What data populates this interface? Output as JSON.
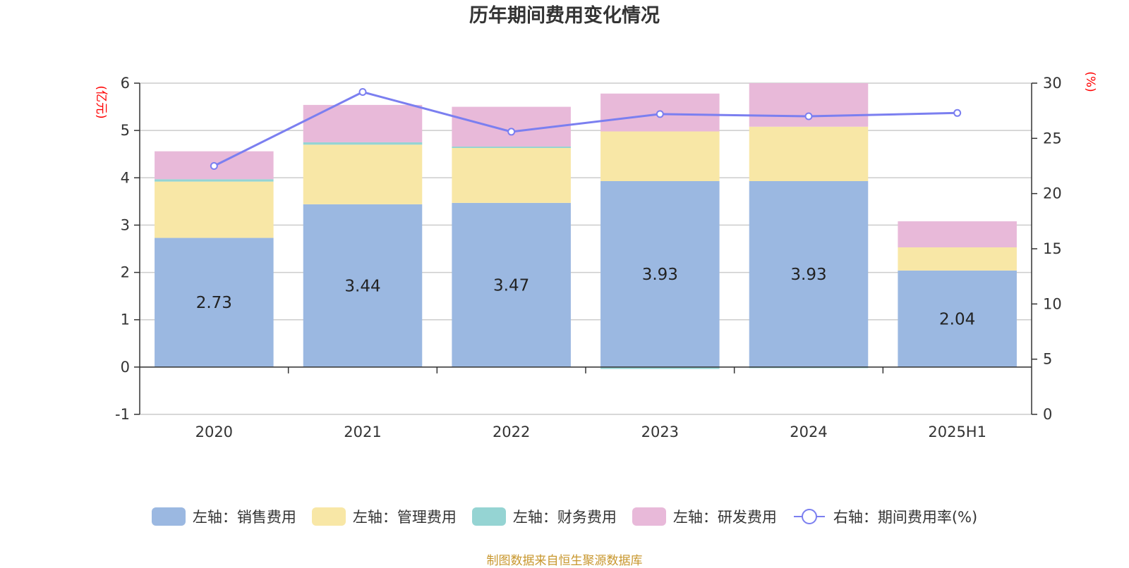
{
  "chart_data": {
    "type": "bar",
    "title": "历年期间费用变化情况",
    "categories": [
      "2020",
      "2021",
      "2022",
      "2023",
      "2024",
      "2025H1"
    ],
    "y_left": {
      "unit_label": "(亿元)",
      "ylim": [
        -1,
        6
      ],
      "ticks": [
        -1,
        0,
        1,
        2,
        3,
        4,
        5,
        6
      ],
      "color": "#ff0000"
    },
    "y_right": {
      "unit_label": "(%)",
      "ylim": [
        0,
        30
      ],
      "ticks": [
        0,
        5,
        10,
        15,
        20,
        25,
        30
      ],
      "color": "#ff0000"
    },
    "grid": true,
    "series": [
      {
        "name": "左轴：销售费用",
        "type": "bar",
        "axis": "left",
        "color": "#9bb8e1",
        "values": [
          2.73,
          3.44,
          3.47,
          3.93,
          3.93,
          2.04
        ],
        "data_labels": [
          "2.73",
          "3.44",
          "3.47",
          "3.93",
          "3.93",
          "2.04"
        ]
      },
      {
        "name": "左轴：管理费用",
        "type": "bar",
        "axis": "left",
        "color": "#f8e7a6",
        "values": [
          1.19,
          1.26,
          1.16,
          1.05,
          1.15,
          0.49
        ]
      },
      {
        "name": "左轴：财务费用",
        "type": "bar",
        "axis": "left",
        "color": "#95d4d3",
        "values": [
          0.05,
          0.05,
          0.03,
          -0.04,
          -0.02,
          0.0
        ]
      },
      {
        "name": "左轴：研发费用",
        "type": "bar",
        "axis": "left",
        "color": "#e8b9d9",
        "values": [
          0.59,
          0.79,
          0.84,
          0.8,
          0.92,
          0.55
        ]
      },
      {
        "name": "右轴：期间费用率(%)",
        "type": "line",
        "axis": "right",
        "color": "#7b7ff0",
        "values": [
          22.5,
          29.2,
          25.6,
          27.2,
          27.0,
          27.3
        ]
      }
    ],
    "legend_position": "bottom",
    "source": "制图数据来自恒生聚源数据库"
  }
}
